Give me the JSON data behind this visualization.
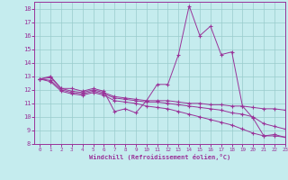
{
  "xlabel": "Windchill (Refroidissement éolien,°C)",
  "xlim": [
    -0.5,
    23
  ],
  "ylim": [
    8,
    18.5
  ],
  "xticks": [
    0,
    1,
    2,
    3,
    4,
    5,
    6,
    7,
    8,
    9,
    10,
    11,
    12,
    13,
    14,
    15,
    16,
    17,
    18,
    19,
    20,
    21,
    22,
    23
  ],
  "yticks": [
    8,
    9,
    10,
    11,
    12,
    13,
    14,
    15,
    16,
    17,
    18
  ],
  "bg_color": "#c5ecee",
  "line_color": "#993399",
  "grid_color": "#99cccc",
  "lines": [
    {
      "x": [
        0,
        1,
        2,
        3,
        4,
        5,
        6,
        7,
        8,
        9,
        10,
        11,
        12,
        13,
        14,
        15,
        16,
        17,
        18,
        19,
        20,
        21,
        22,
        23
      ],
      "y": [
        12.8,
        13.0,
        12.1,
        12.1,
        11.9,
        12.1,
        11.9,
        10.4,
        10.6,
        10.3,
        11.2,
        12.4,
        12.4,
        14.6,
        18.2,
        16.0,
        16.7,
        14.6,
        14.8,
        10.8,
        9.9,
        8.6,
        8.7,
        8.5
      ]
    },
    {
      "x": [
        0,
        1,
        2,
        3,
        4,
        5,
        6,
        7,
        8,
        9,
        10,
        11,
        12,
        13,
        14,
        15,
        16,
        17,
        18,
        19,
        20,
        21,
        22,
        23
      ],
      "y": [
        12.8,
        12.9,
        12.1,
        11.9,
        11.8,
        12.0,
        11.8,
        11.5,
        11.4,
        11.3,
        11.2,
        11.2,
        11.2,
        11.1,
        11.0,
        11.0,
        10.9,
        10.9,
        10.8,
        10.8,
        10.7,
        10.6,
        10.6,
        10.5
      ]
    },
    {
      "x": [
        0,
        1,
        2,
        3,
        4,
        5,
        6,
        7,
        8,
        9,
        10,
        11,
        12,
        13,
        14,
        15,
        16,
        17,
        18,
        19,
        20,
        21,
        22,
        23
      ],
      "y": [
        12.8,
        12.7,
        12.0,
        11.8,
        11.7,
        11.9,
        11.7,
        11.4,
        11.3,
        11.2,
        11.1,
        11.1,
        11.0,
        10.9,
        10.8,
        10.7,
        10.6,
        10.5,
        10.3,
        10.2,
        10.0,
        9.5,
        9.3,
        9.1
      ]
    },
    {
      "x": [
        0,
        1,
        2,
        3,
        4,
        5,
        6,
        7,
        8,
        9,
        10,
        11,
        12,
        13,
        14,
        15,
        16,
        17,
        18,
        19,
        20,
        21,
        22,
        23
      ],
      "y": [
        12.8,
        12.6,
        11.9,
        11.7,
        11.6,
        11.8,
        11.6,
        11.2,
        11.1,
        11.0,
        10.8,
        10.7,
        10.6,
        10.4,
        10.2,
        10.0,
        9.8,
        9.6,
        9.4,
        9.1,
        8.8,
        8.6,
        8.6,
        8.5
      ]
    }
  ]
}
